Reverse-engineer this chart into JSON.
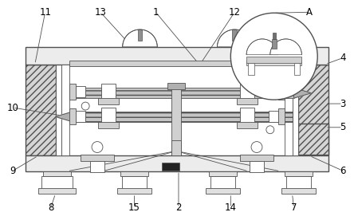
{
  "bg_color": "#ffffff",
  "line_color": "#505050",
  "figsize": [
    4.44,
    2.76
  ],
  "dpi": 100,
  "label_fontsize": 8.5
}
